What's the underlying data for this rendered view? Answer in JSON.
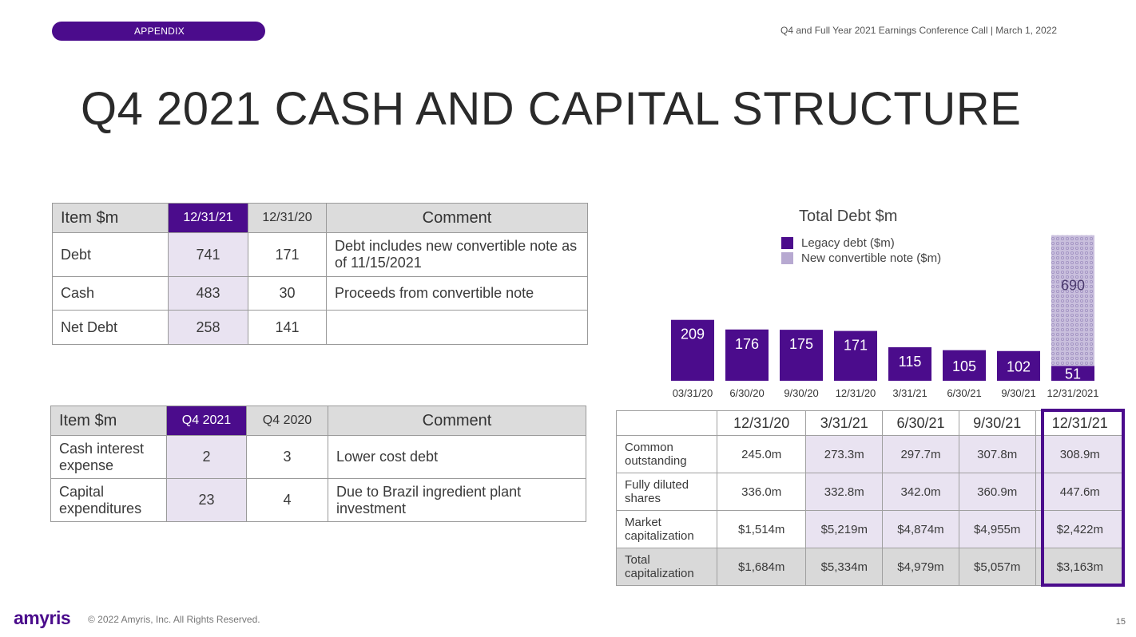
{
  "header": {
    "section": "APPENDIX",
    "event": "Q4 and Full Year 2021 Earnings Conference Call | March 1, 2022"
  },
  "title": "Q4 2021 CASH AND CAPITAL STRUCTURE",
  "balance_table": {
    "headers": [
      "Item $m",
      "12/31/21",
      "12/31/20",
      "Comment"
    ],
    "rows": [
      {
        "item": "Debt",
        "current": "741",
        "prior": "171",
        "comment": "Debt includes new convertible note as of 11/15/2021"
      },
      {
        "item": "Cash",
        "current": "483",
        "prior": "30",
        "comment": "Proceeds from convertible note"
      },
      {
        "item": "Net Debt",
        "current": "258",
        "prior": "141",
        "comment": ""
      }
    ]
  },
  "expense_table": {
    "headers": [
      "Item $m",
      "Q4 2021",
      "Q4 2020",
      "Comment"
    ],
    "rows": [
      {
        "item": "Cash interest expense",
        "current": "2",
        "prior": "3",
        "comment": "Lower cost debt"
      },
      {
        "item": "Capital expenditures",
        "current": "23",
        "prior": "4",
        "comment": "Due to Brazil ingredient plant investment"
      }
    ]
  },
  "chart_data": {
    "type": "bar",
    "title": "Total Debt $m",
    "categories": [
      "03/31/20",
      "6/30/20",
      "9/30/20",
      "12/31/20",
      "3/31/21",
      "6/30/21",
      "9/30/21",
      "12/31/2021"
    ],
    "series": [
      {
        "name": "Legacy debt ($m)",
        "values": [
          209,
          176,
          175,
          171,
          115,
          105,
          102,
          51
        ],
        "color": "#4b0c8c"
      },
      {
        "name": "New convertible note ($m)",
        "values": [
          0,
          0,
          0,
          0,
          0,
          0,
          0,
          690
        ],
        "color": "#b7a9d1"
      }
    ],
    "stacked": true,
    "legend_position": "top-center",
    "grid": false
  },
  "cap_table": {
    "headers": [
      "",
      "12/31/20",
      "3/31/21",
      "6/30/21",
      "9/30/21",
      "12/31/21"
    ],
    "rows": [
      {
        "label": "Common outstanding",
        "values": [
          "245.0m",
          "273.3m",
          "297.7m",
          "307.8m",
          "308.9m"
        ]
      },
      {
        "label": "Fully diluted shares",
        "values": [
          "336.0m",
          "332.8m",
          "342.0m",
          "360.9m",
          "447.6m"
        ]
      },
      {
        "label": "Market capitalization",
        "values": [
          "$1,514m",
          "$5,219m",
          "$4,874m",
          "$4,955m",
          "$2,422m"
        ]
      },
      {
        "label": "Total capitalization",
        "values": [
          "$1,684m",
          "$5,334m",
          "$4,979m",
          "$5,057m",
          "$3,163m"
        ]
      }
    ]
  },
  "footer": {
    "logo": "amyris",
    "copyright": "© 2022 Amyris, Inc. All Rights Reserved.",
    "page": "15"
  },
  "colors": {
    "accent": "#4b0c8c",
    "shade": "#e9e3f1",
    "convertible": "#b7a9d1"
  }
}
